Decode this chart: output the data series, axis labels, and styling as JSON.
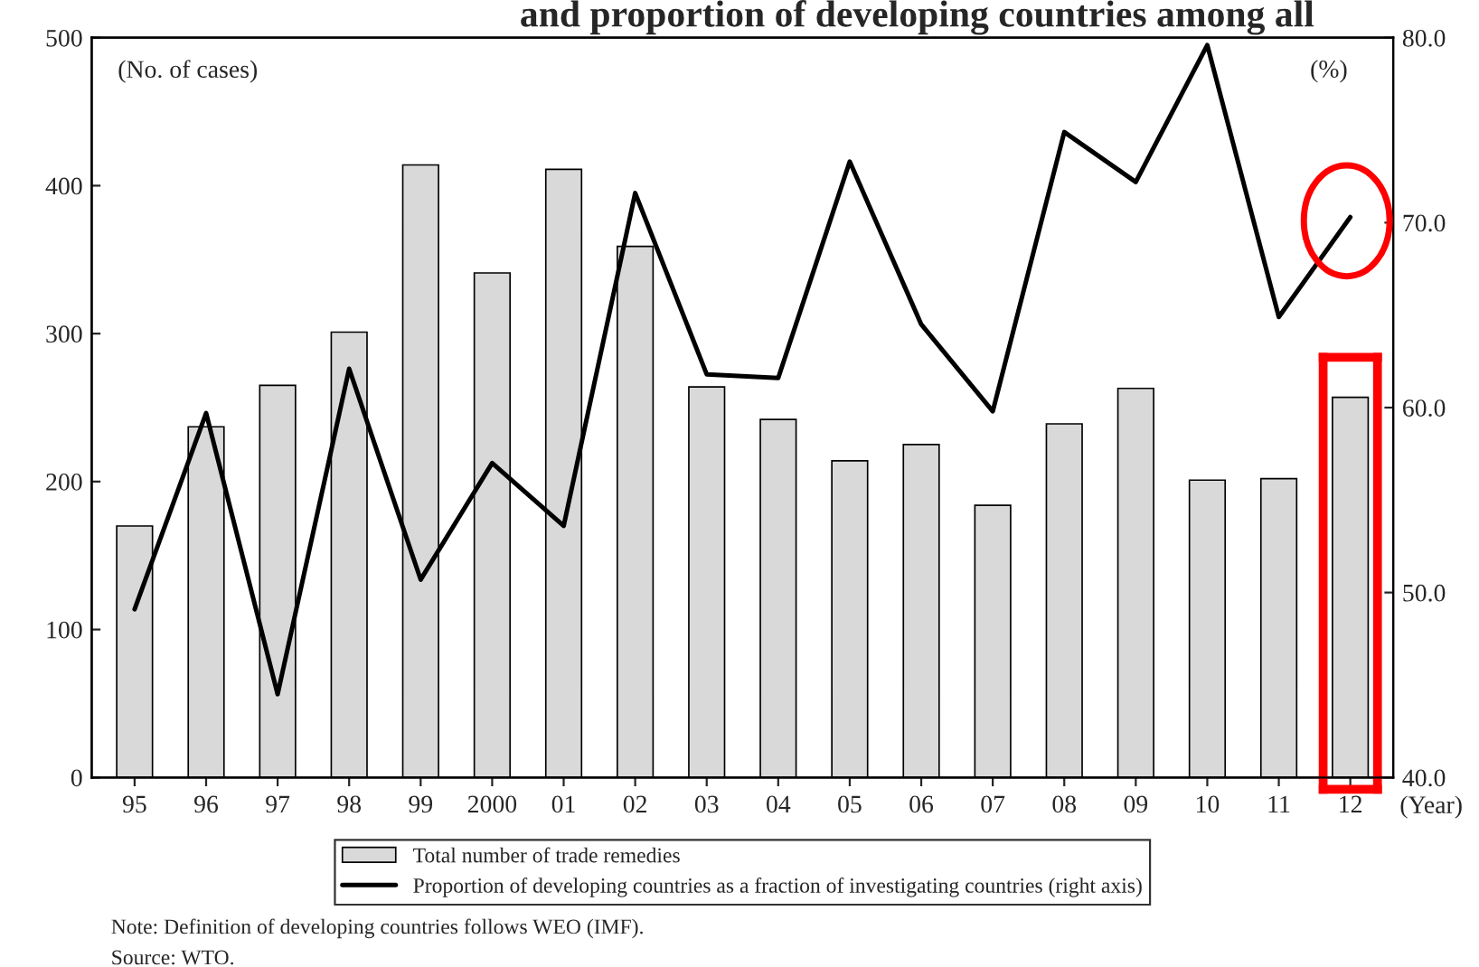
{
  "chart_data": {
    "type": "bar",
    "title": "and proportion of developing countries among all",
    "categories": [
      "95",
      "96",
      "97",
      "98",
      "99",
      "2000",
      "01",
      "02",
      "03",
      "04",
      "05",
      "06",
      "07",
      "08",
      "09",
      "10",
      "11",
      "12"
    ],
    "series": [
      {
        "name": "Total number of trade remedies",
        "color": "#d9d9d9",
        "values": [
          170,
          237,
          265,
          301,
          414,
          341,
          411,
          359,
          264,
          242,
          214,
          225,
          184,
          239,
          263,
          201,
          202,
          257
        ]
      },
      {
        "name": "Proportion of developing countries as a fraction of investigating countries (right axis)",
        "type": "line",
        "axis": "y2",
        "color": "#000000",
        "values": [
          49.1,
          59.7,
          44.5,
          62.1,
          50.7,
          57.0,
          53.6,
          71.6,
          61.8,
          61.6,
          73.3,
          64.5,
          59.8,
          74.9,
          72.2,
          79.6,
          64.9,
          70.3
        ]
      }
    ],
    "ylabel": "(No. of cases)",
    "y2label": "(%)",
    "xlabel": "(Year)",
    "ylim": [
      0,
      500
    ],
    "yticks": [
      0,
      100,
      200,
      300,
      400,
      500
    ],
    "y2lim": [
      40,
      80
    ],
    "y2ticks": [
      {
        "value": 40,
        "label": "40.0"
      },
      {
        "value": 50,
        "label": "50.0"
      },
      {
        "value": 60,
        "label": "60.0"
      },
      {
        "value": 70,
        "label": "70.0"
      },
      {
        "value": 80,
        "label": "80.0"
      }
    ],
    "grid": false,
    "legend": "bottom",
    "marker": "none",
    "line_style": "solid",
    "annotations": [
      "Note: Definition of developing countries follows WEO (IMF).",
      "Source: WTO."
    ]
  }
}
